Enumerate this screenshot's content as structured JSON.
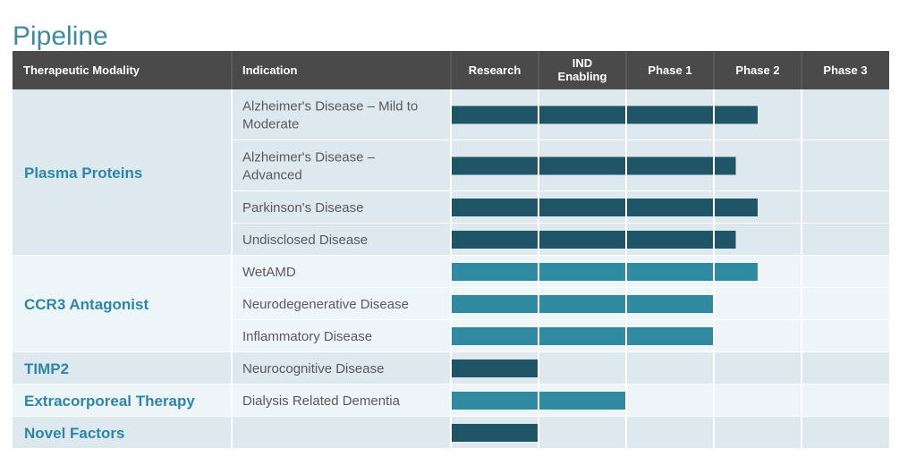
{
  "title": "Pipeline",
  "colors": {
    "header_bg": "#4a4a4a",
    "header_text": "#ffffff",
    "title": "#3d8aa3",
    "group_label": "#2e86a6",
    "indication_text": "#5a5a5a",
    "bar_dark": "#1f5566",
    "bar_light": "#2f8aa2",
    "band_a": "#dde9ef",
    "band_b": "#eef5f8"
  },
  "chart_data": {
    "type": "table",
    "columns": [
      "Therapeutic Modality",
      "Indication",
      "Research",
      "IND\nEnabling",
      "Phase 1",
      "Phase 2",
      "Phase 3"
    ],
    "stages": [
      "Research",
      "IND Enabling",
      "Phase 1",
      "Phase 2",
      "Phase 3"
    ],
    "groups": [
      {
        "modality": "Plasma Proteins",
        "shade": "dark",
        "rows": [
          {
            "indication": "Alzheimer's Disease – Mild to\nModerate",
            "progress": 3.5
          },
          {
            "indication": "Alzheimer's Disease –\nAdvanced",
            "progress": 3.25
          },
          {
            "indication": "Parkinson's Disease",
            "progress": 3.5
          },
          {
            "indication": "Undisclosed Disease",
            "progress": 3.25
          }
        ]
      },
      {
        "modality": "CCR3 Antagonist",
        "shade": "light",
        "rows": [
          {
            "indication": "WetAMD",
            "progress": 3.5
          },
          {
            "indication": "Neurodegenerative Disease",
            "progress": 3.0
          },
          {
            "indication": "Inflammatory Disease",
            "progress": 3.0
          }
        ]
      },
      {
        "modality": "TIMP2",
        "shade": "dark",
        "rows": [
          {
            "indication": "Neurocognitive Disease",
            "progress": 1.0
          }
        ]
      },
      {
        "modality": "Extracorporeal Therapy",
        "shade": "light",
        "rows": [
          {
            "indication": "Dialysis Related Dementia",
            "progress": 2.0
          }
        ]
      },
      {
        "modality": "Novel Factors",
        "shade": "dark",
        "rows": [
          {
            "indication": "",
            "progress": 1.0
          }
        ]
      }
    ]
  }
}
